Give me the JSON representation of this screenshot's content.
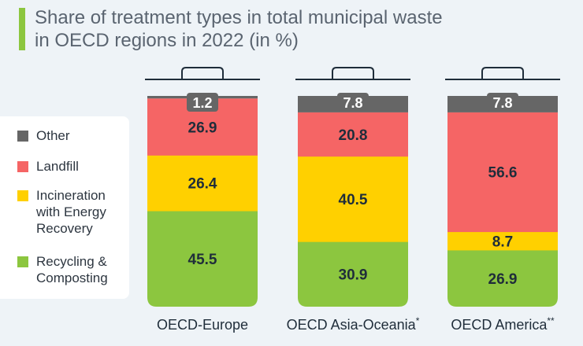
{
  "title": {
    "line1": "Share of treatment types in total municipal waste",
    "line2": "in OECD regions in 2022 (in %)"
  },
  "legend": {
    "items": [
      {
        "label": "Other",
        "color": "#666666"
      },
      {
        "label": "Landfill",
        "color": "#f56565"
      },
      {
        "label": "Incineration with Energy Recovery",
        "color": "#ffd000"
      },
      {
        "label": "Recycling & Composting",
        "color": "#8cc63f"
      }
    ]
  },
  "chart_data": {
    "type": "bar",
    "stacked": true,
    "categories": [
      "OECD-Europe",
      "OECD Asia-Oceania",
      "OECD America"
    ],
    "category_marks": [
      "",
      "*",
      "**"
    ],
    "series": [
      {
        "name": "Recycling & Composting",
        "color": "#8cc63f",
        "values": [
          45.5,
          30.9,
          26.9
        ]
      },
      {
        "name": "Incineration with Energy Recovery",
        "color": "#ffd000",
        "values": [
          26.4,
          40.5,
          8.7
        ]
      },
      {
        "name": "Landfill",
        "color": "#f56565",
        "values": [
          26.9,
          20.8,
          56.6
        ]
      },
      {
        "name": "Other",
        "color": "#666666",
        "values": [
          1.2,
          7.8,
          7.8
        ]
      }
    ],
    "unit": "%",
    "ylim": [
      0,
      100
    ],
    "legend_position": "left",
    "grid": false
  }
}
